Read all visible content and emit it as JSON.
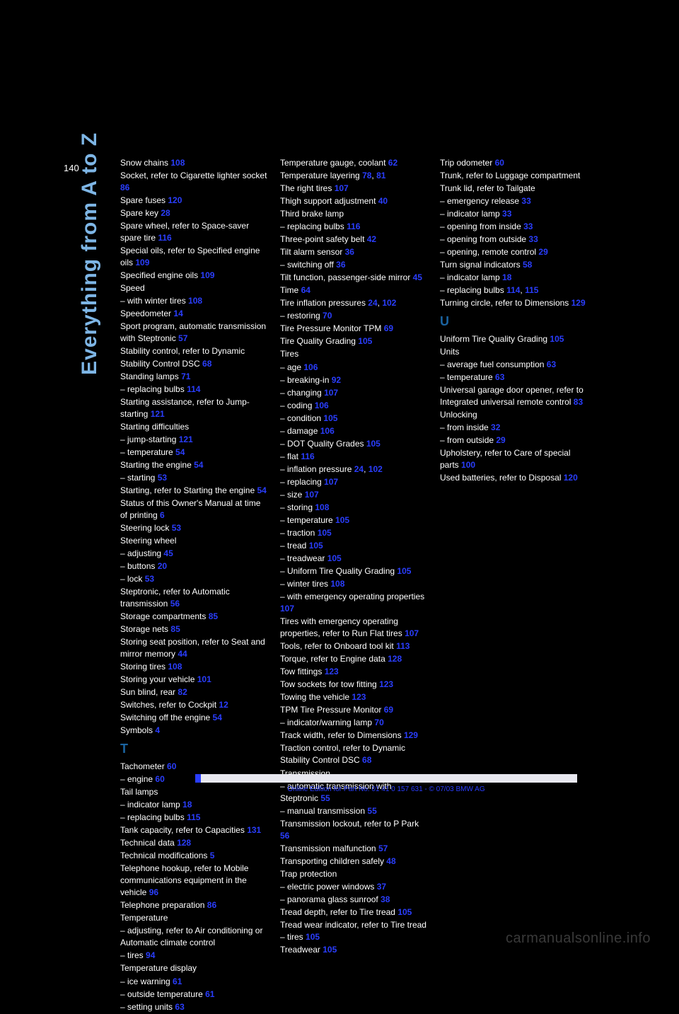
{
  "page": {
    "number": "140",
    "vertical_title": "Everything from A to Z",
    "footer_text": "Online Edition for Part No. 01 41 0 157 631 - © 07/03 BMW AG",
    "watermark": "carmanualsonline.info"
  },
  "colors": {
    "link": "#2a3eff",
    "title": "#7eb6e6",
    "letter": "#1a63a0",
    "text": "#ffffff",
    "bg": "#000000",
    "footer_bar": "#e8e8f0"
  },
  "col1": [
    {
      "t": "Snow chains ",
      "r": "108"
    },
    {
      "t": "Socket, refer to Cigarette lighter socket ",
      "r": "86"
    },
    {
      "t": "Spare fuses ",
      "r": "120"
    },
    {
      "t": "Spare key ",
      "r": "28"
    },
    {
      "t": "Spare wheel, refer to Space-saver spare tire ",
      "r": "116"
    },
    {
      "t": "Special oils, refer to Specified engine oils ",
      "r": "109"
    },
    {
      "t": "Specified engine oils ",
      "r": "109"
    },
    {
      "t": "Speed"
    },
    {
      "t": "&ndash; with winter tires ",
      "r": "108"
    },
    {
      "t": "Speedometer ",
      "r": "14"
    },
    {
      "t": "Sport program, automatic transmission with Steptronic ",
      "r": "57"
    },
    {
      "t": "Stability control, refer to Dynamic Stability Control DSC ",
      "r": "68"
    },
    {
      "t": "Standing lamps ",
      "r": "71"
    },
    {
      "t": "&ndash; replacing bulbs ",
      "r": "114"
    },
    {
      "t": "Starting assistance, refer to Jump-starting ",
      "r": "121"
    },
    {
      "t": "Starting difficulties"
    },
    {
      "t": "&ndash; jump-starting ",
      "r": "121"
    },
    {
      "t": "&ndash; temperature ",
      "r": "54"
    },
    {
      "t": "Starting the engine ",
      "r": "54"
    },
    {
      "t": "&ndash; starting ",
      "r": "53"
    },
    {
      "t": "Starting, refer to Starting the engine ",
      "r": "54"
    },
    {
      "t": "Status of this Owner's Manual at time of printing ",
      "r": "6"
    },
    {
      "t": "Steering lock ",
      "r": "53"
    },
    {
      "t": "Steering wheel"
    },
    {
      "t": "&ndash; adjusting ",
      "r": "45"
    },
    {
      "t": "&ndash; buttons ",
      "r": "20"
    },
    {
      "t": "&ndash; lock ",
      "r": "53"
    },
    {
      "t": "Steptronic, refer to Automatic transmission ",
      "r": "56"
    },
    {
      "t": "Storage compartments ",
      "r": "85"
    },
    {
      "t": "Storage nets ",
      "r": "85"
    },
    {
      "t": "Storing seat position, refer to Seat and mirror memory ",
      "r": "44"
    },
    {
      "t": "Storing tires ",
      "r": "108"
    },
    {
      "t": "Storing your vehicle ",
      "r": "101"
    },
    {
      "t": "Sun blind, rear ",
      "r": "82"
    },
    {
      "t": "Switches, refer to Cockpit ",
      "r": "12"
    },
    {
      "t": "Switching off the engine ",
      "r": "54"
    },
    {
      "t": "Symbols ",
      "r": "4"
    },
    {
      "t": "",
      "letter": "T"
    },
    {
      "t": "Tachometer ",
      "r": "60"
    },
    {
      "t": "&ndash; engine ",
      "r": "60"
    },
    {
      "t": "Tail lamps"
    },
    {
      "t": "&ndash; indicator lamp ",
      "r": "18"
    },
    {
      "t": "&ndash; replacing bulbs ",
      "r": "115"
    },
    {
      "t": "Tank capacity, refer to Capacities ",
      "r": "131"
    },
    {
      "t": "Technical data ",
      "r": "128"
    },
    {
      "t": "Technical modifications ",
      "r": "5"
    },
    {
      "t": "Telephone hookup, refer to Mobile communications equipment in the vehicle ",
      "r": "96"
    },
    {
      "t": "Telephone preparation ",
      "r": "86"
    },
    {
      "t": "Temperature"
    },
    {
      "t": "&ndash; adjusting, refer to Air conditioning or Automatic climate control"
    },
    {
      "t": "&ndash; tires ",
      "r": "94"
    },
    {
      "t": "Temperature display"
    },
    {
      "t": "&ndash; ice warning ",
      "r": "61"
    },
    {
      "t": "&ndash; outside temperature ",
      "r": "61"
    },
    {
      "t": "&ndash; setting units ",
      "r": "63"
    }
  ],
  "col2": [
    {
      "t": "Temperature gauge, coolant ",
      "r": "62"
    },
    {
      "t": "Temperature layering ",
      "r": "78",
      "r2": "81"
    },
    {
      "t": "The right tires ",
      "r": "107"
    },
    {
      "t": "Thigh support adjustment ",
      "r": "40"
    },
    {
      "t": "Third brake lamp"
    },
    {
      "t": "&ndash; replacing bulbs ",
      "r": "116"
    },
    {
      "t": "Three-point safety belt ",
      "r": "42"
    },
    {
      "t": "Tilt alarm sensor ",
      "r": "36"
    },
    {
      "t": "&ndash; switching off ",
      "r": "36"
    },
    {
      "t": "Tilt function, passenger-side mirror ",
      "r": "45"
    },
    {
      "t": "Time ",
      "r": "64"
    },
    {
      "t": "Tire inflation pressures ",
      "r": "24",
      "r2": "102"
    },
    {
      "t": "&ndash; restoring ",
      "r": "70"
    },
    {
      "t": "Tire Pressure Monitor TPM ",
      "r": "69"
    },
    {
      "t": "Tire Quality Grading ",
      "r": "105"
    },
    {
      "t": "Tires"
    },
    {
      "t": "&ndash; age ",
      "r": "106"
    },
    {
      "t": "&ndash; breaking-in ",
      "r": "92"
    },
    {
      "t": "&ndash; changing ",
      "r": "107"
    },
    {
      "t": "&ndash; coding ",
      "r": "106"
    },
    {
      "t": "&ndash; condition ",
      "r": "105"
    },
    {
      "t": "&ndash; damage ",
      "r": "106"
    },
    {
      "t": "&ndash; DOT Quality Grades ",
      "r": "105"
    },
    {
      "t": "&ndash; flat ",
      "r": "116"
    },
    {
      "t": "&ndash; inflation pressure ",
      "r": "24",
      "r2": "102"
    },
    {
      "t": "&ndash; replacing ",
      "r": "107"
    },
    {
      "t": "&ndash; size ",
      "r": "107"
    },
    {
      "t": "&ndash; storing ",
      "r": "108"
    },
    {
      "t": "&ndash; temperature ",
      "r": "105"
    },
    {
      "t": "&ndash; traction ",
      "r": "105"
    },
    {
      "t": "&ndash; tread ",
      "r": "105"
    },
    {
      "t": "&ndash; treadwear ",
      "r": "105"
    },
    {
      "t": "&ndash; Uniform Tire Quality Grading ",
      "r": "105"
    },
    {
      "t": "&ndash; winter tires ",
      "r": "108"
    },
    {
      "t": "&ndash; with emergency operating properties ",
      "r": "107"
    },
    {
      "t": "Tires with emergency operating properties, refer to Run Flat tires ",
      "r": "107"
    },
    {
      "t": "Tools, refer to Onboard tool kit ",
      "r": "113"
    },
    {
      "t": "Torque, refer to Engine data ",
      "r": "128"
    },
    {
      "t": "Tow fittings ",
      "r": "123"
    },
    {
      "t": "Tow sockets for tow fitting ",
      "r": "123"
    },
    {
      "t": "Towing the vehicle ",
      "r": "123"
    },
    {
      "t": "TPM Tire Pressure Monitor ",
      "r": "69"
    },
    {
      "t": "&ndash; indicator/warning lamp ",
      "r": "70"
    },
    {
      "t": "Track width, refer to Dimensions ",
      "r": "129"
    },
    {
      "t": "Traction control, refer to Dynamic Stability Control DSC ",
      "r": "68"
    },
    {
      "t": "Transmission"
    },
    {
      "t": "&ndash; automatic transmission with Steptronic ",
      "r": "55"
    },
    {
      "t": "&ndash; manual transmission ",
      "r": "55"
    },
    {
      "t": "Transmission lockout, refer to P Park ",
      "r": "56"
    },
    {
      "t": "Transmission malfunction ",
      "r": "57"
    },
    {
      "t": "Transporting children safely ",
      "r": "48"
    },
    {
      "t": "Trap protection"
    },
    {
      "t": "&ndash; electric power windows ",
      "r": "37"
    },
    {
      "t": "&ndash; panorama glass sunroof ",
      "r": "38"
    },
    {
      "t": "Tread depth, refer to Tire tread ",
      "r": "105"
    },
    {
      "t": "Tread wear indicator, refer to Tire tread – tires ",
      "r": "105"
    },
    {
      "t": "Treadwear ",
      "r": "105"
    }
  ],
  "col3": [
    {
      "t": "Trip odometer ",
      "r": "60"
    },
    {
      "t": "Trunk, refer to Luggage compartment"
    },
    {
      "t": "Trunk lid, refer to Tailgate"
    },
    {
      "t": "&ndash; emergency release ",
      "r": "33"
    },
    {
      "t": "&ndash; indicator lamp ",
      "r": "33"
    },
    {
      "t": "&ndash; opening from inside ",
      "r": "33"
    },
    {
      "t": "&ndash; opening from outside ",
      "r": "33"
    },
    {
      "t": "&ndash; opening, remote control ",
      "r": "29"
    },
    {
      "t": "Turn signal indicators ",
      "r": "58"
    },
    {
      "t": "&ndash; indicator lamp ",
      "r": "18"
    },
    {
      "t": "&ndash; replacing bulbs ",
      "r": "114",
      "r2": "115"
    },
    {
      "t": "Turning circle, refer to Dimensions ",
      "r": "129"
    },
    {
      "t": "",
      "letter": "U"
    },
    {
      "t": "Uniform Tire Quality Grading ",
      "r": "105"
    },
    {
      "t": "Units"
    },
    {
      "t": "&ndash; average fuel consumption ",
      "r": "63"
    },
    {
      "t": "&ndash; temperature ",
      "r": "63"
    },
    {
      "t": "Universal garage door opener, refer to Integrated universal remote control ",
      "r": "83"
    },
    {
      "t": "Unlocking"
    },
    {
      "t": "&ndash; from inside ",
      "r": "32"
    },
    {
      "t": "&ndash; from outside ",
      "r": "29"
    },
    {
      "t": "Upholstery, refer to Care of special parts ",
      "r": "100"
    },
    {
      "t": "Used batteries, refer to Disposal ",
      "r": "120"
    }
  ]
}
